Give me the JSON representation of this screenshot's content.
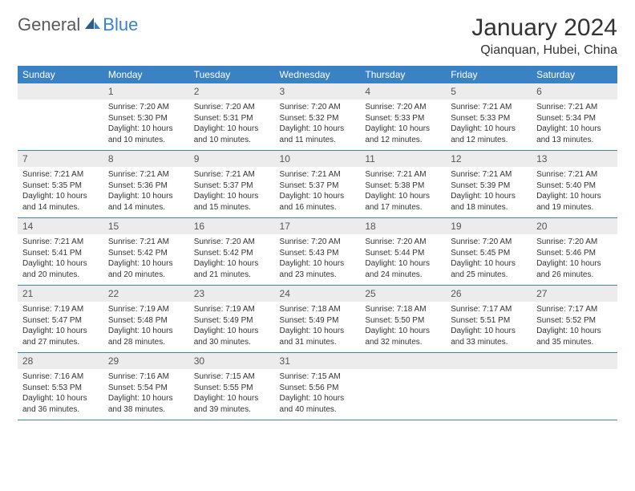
{
  "logo": {
    "general": "General",
    "blue": "Blue"
  },
  "title": "January 2024",
  "location": "Qianquan, Hubei, China",
  "colors": {
    "header_bg": "#3b82c4",
    "header_text": "#ffffff",
    "daynum_bg": "#ececec",
    "text": "#333333",
    "logo_gray": "#5a5a5a",
    "logo_blue": "#3b82c4",
    "cell_border": "#3b82c4"
  },
  "typography": {
    "title_fontsize": 30,
    "location_fontsize": 16,
    "weekday_fontsize": 12,
    "daynum_fontsize": 12,
    "body_fontsize": 10
  },
  "weekdays": [
    "Sunday",
    "Monday",
    "Tuesday",
    "Wednesday",
    "Thursday",
    "Friday",
    "Saturday"
  ],
  "weeks": [
    [
      null,
      {
        "n": "1",
        "sr": "Sunrise: 7:20 AM",
        "ss": "Sunset: 5:30 PM",
        "d1": "Daylight: 10 hours",
        "d2": "and 10 minutes."
      },
      {
        "n": "2",
        "sr": "Sunrise: 7:20 AM",
        "ss": "Sunset: 5:31 PM",
        "d1": "Daylight: 10 hours",
        "d2": "and 10 minutes."
      },
      {
        "n": "3",
        "sr": "Sunrise: 7:20 AM",
        "ss": "Sunset: 5:32 PM",
        "d1": "Daylight: 10 hours",
        "d2": "and 11 minutes."
      },
      {
        "n": "4",
        "sr": "Sunrise: 7:20 AM",
        "ss": "Sunset: 5:33 PM",
        "d1": "Daylight: 10 hours",
        "d2": "and 12 minutes."
      },
      {
        "n": "5",
        "sr": "Sunrise: 7:21 AM",
        "ss": "Sunset: 5:33 PM",
        "d1": "Daylight: 10 hours",
        "d2": "and 12 minutes."
      },
      {
        "n": "6",
        "sr": "Sunrise: 7:21 AM",
        "ss": "Sunset: 5:34 PM",
        "d1": "Daylight: 10 hours",
        "d2": "and 13 minutes."
      }
    ],
    [
      {
        "n": "7",
        "sr": "Sunrise: 7:21 AM",
        "ss": "Sunset: 5:35 PM",
        "d1": "Daylight: 10 hours",
        "d2": "and 14 minutes."
      },
      {
        "n": "8",
        "sr": "Sunrise: 7:21 AM",
        "ss": "Sunset: 5:36 PM",
        "d1": "Daylight: 10 hours",
        "d2": "and 14 minutes."
      },
      {
        "n": "9",
        "sr": "Sunrise: 7:21 AM",
        "ss": "Sunset: 5:37 PM",
        "d1": "Daylight: 10 hours",
        "d2": "and 15 minutes."
      },
      {
        "n": "10",
        "sr": "Sunrise: 7:21 AM",
        "ss": "Sunset: 5:37 PM",
        "d1": "Daylight: 10 hours",
        "d2": "and 16 minutes."
      },
      {
        "n": "11",
        "sr": "Sunrise: 7:21 AM",
        "ss": "Sunset: 5:38 PM",
        "d1": "Daylight: 10 hours",
        "d2": "and 17 minutes."
      },
      {
        "n": "12",
        "sr": "Sunrise: 7:21 AM",
        "ss": "Sunset: 5:39 PM",
        "d1": "Daylight: 10 hours",
        "d2": "and 18 minutes."
      },
      {
        "n": "13",
        "sr": "Sunrise: 7:21 AM",
        "ss": "Sunset: 5:40 PM",
        "d1": "Daylight: 10 hours",
        "d2": "and 19 minutes."
      }
    ],
    [
      {
        "n": "14",
        "sr": "Sunrise: 7:21 AM",
        "ss": "Sunset: 5:41 PM",
        "d1": "Daylight: 10 hours",
        "d2": "and 20 minutes."
      },
      {
        "n": "15",
        "sr": "Sunrise: 7:21 AM",
        "ss": "Sunset: 5:42 PM",
        "d1": "Daylight: 10 hours",
        "d2": "and 20 minutes."
      },
      {
        "n": "16",
        "sr": "Sunrise: 7:20 AM",
        "ss": "Sunset: 5:42 PM",
        "d1": "Daylight: 10 hours",
        "d2": "and 21 minutes."
      },
      {
        "n": "17",
        "sr": "Sunrise: 7:20 AM",
        "ss": "Sunset: 5:43 PM",
        "d1": "Daylight: 10 hours",
        "d2": "and 23 minutes."
      },
      {
        "n": "18",
        "sr": "Sunrise: 7:20 AM",
        "ss": "Sunset: 5:44 PM",
        "d1": "Daylight: 10 hours",
        "d2": "and 24 minutes."
      },
      {
        "n": "19",
        "sr": "Sunrise: 7:20 AM",
        "ss": "Sunset: 5:45 PM",
        "d1": "Daylight: 10 hours",
        "d2": "and 25 minutes."
      },
      {
        "n": "20",
        "sr": "Sunrise: 7:20 AM",
        "ss": "Sunset: 5:46 PM",
        "d1": "Daylight: 10 hours",
        "d2": "and 26 minutes."
      }
    ],
    [
      {
        "n": "21",
        "sr": "Sunrise: 7:19 AM",
        "ss": "Sunset: 5:47 PM",
        "d1": "Daylight: 10 hours",
        "d2": "and 27 minutes."
      },
      {
        "n": "22",
        "sr": "Sunrise: 7:19 AM",
        "ss": "Sunset: 5:48 PM",
        "d1": "Daylight: 10 hours",
        "d2": "and 28 minutes."
      },
      {
        "n": "23",
        "sr": "Sunrise: 7:19 AM",
        "ss": "Sunset: 5:49 PM",
        "d1": "Daylight: 10 hours",
        "d2": "and 30 minutes."
      },
      {
        "n": "24",
        "sr": "Sunrise: 7:18 AM",
        "ss": "Sunset: 5:49 PM",
        "d1": "Daylight: 10 hours",
        "d2": "and 31 minutes."
      },
      {
        "n": "25",
        "sr": "Sunrise: 7:18 AM",
        "ss": "Sunset: 5:50 PM",
        "d1": "Daylight: 10 hours",
        "d2": "and 32 minutes."
      },
      {
        "n": "26",
        "sr": "Sunrise: 7:17 AM",
        "ss": "Sunset: 5:51 PM",
        "d1": "Daylight: 10 hours",
        "d2": "and 33 minutes."
      },
      {
        "n": "27",
        "sr": "Sunrise: 7:17 AM",
        "ss": "Sunset: 5:52 PM",
        "d1": "Daylight: 10 hours",
        "d2": "and 35 minutes."
      }
    ],
    [
      {
        "n": "28",
        "sr": "Sunrise: 7:16 AM",
        "ss": "Sunset: 5:53 PM",
        "d1": "Daylight: 10 hours",
        "d2": "and 36 minutes."
      },
      {
        "n": "29",
        "sr": "Sunrise: 7:16 AM",
        "ss": "Sunset: 5:54 PM",
        "d1": "Daylight: 10 hours",
        "d2": "and 38 minutes."
      },
      {
        "n": "30",
        "sr": "Sunrise: 7:15 AM",
        "ss": "Sunset: 5:55 PM",
        "d1": "Daylight: 10 hours",
        "d2": "and 39 minutes."
      },
      {
        "n": "31",
        "sr": "Sunrise: 7:15 AM",
        "ss": "Sunset: 5:56 PM",
        "d1": "Daylight: 10 hours",
        "d2": "and 40 minutes."
      },
      null,
      null,
      null
    ]
  ]
}
